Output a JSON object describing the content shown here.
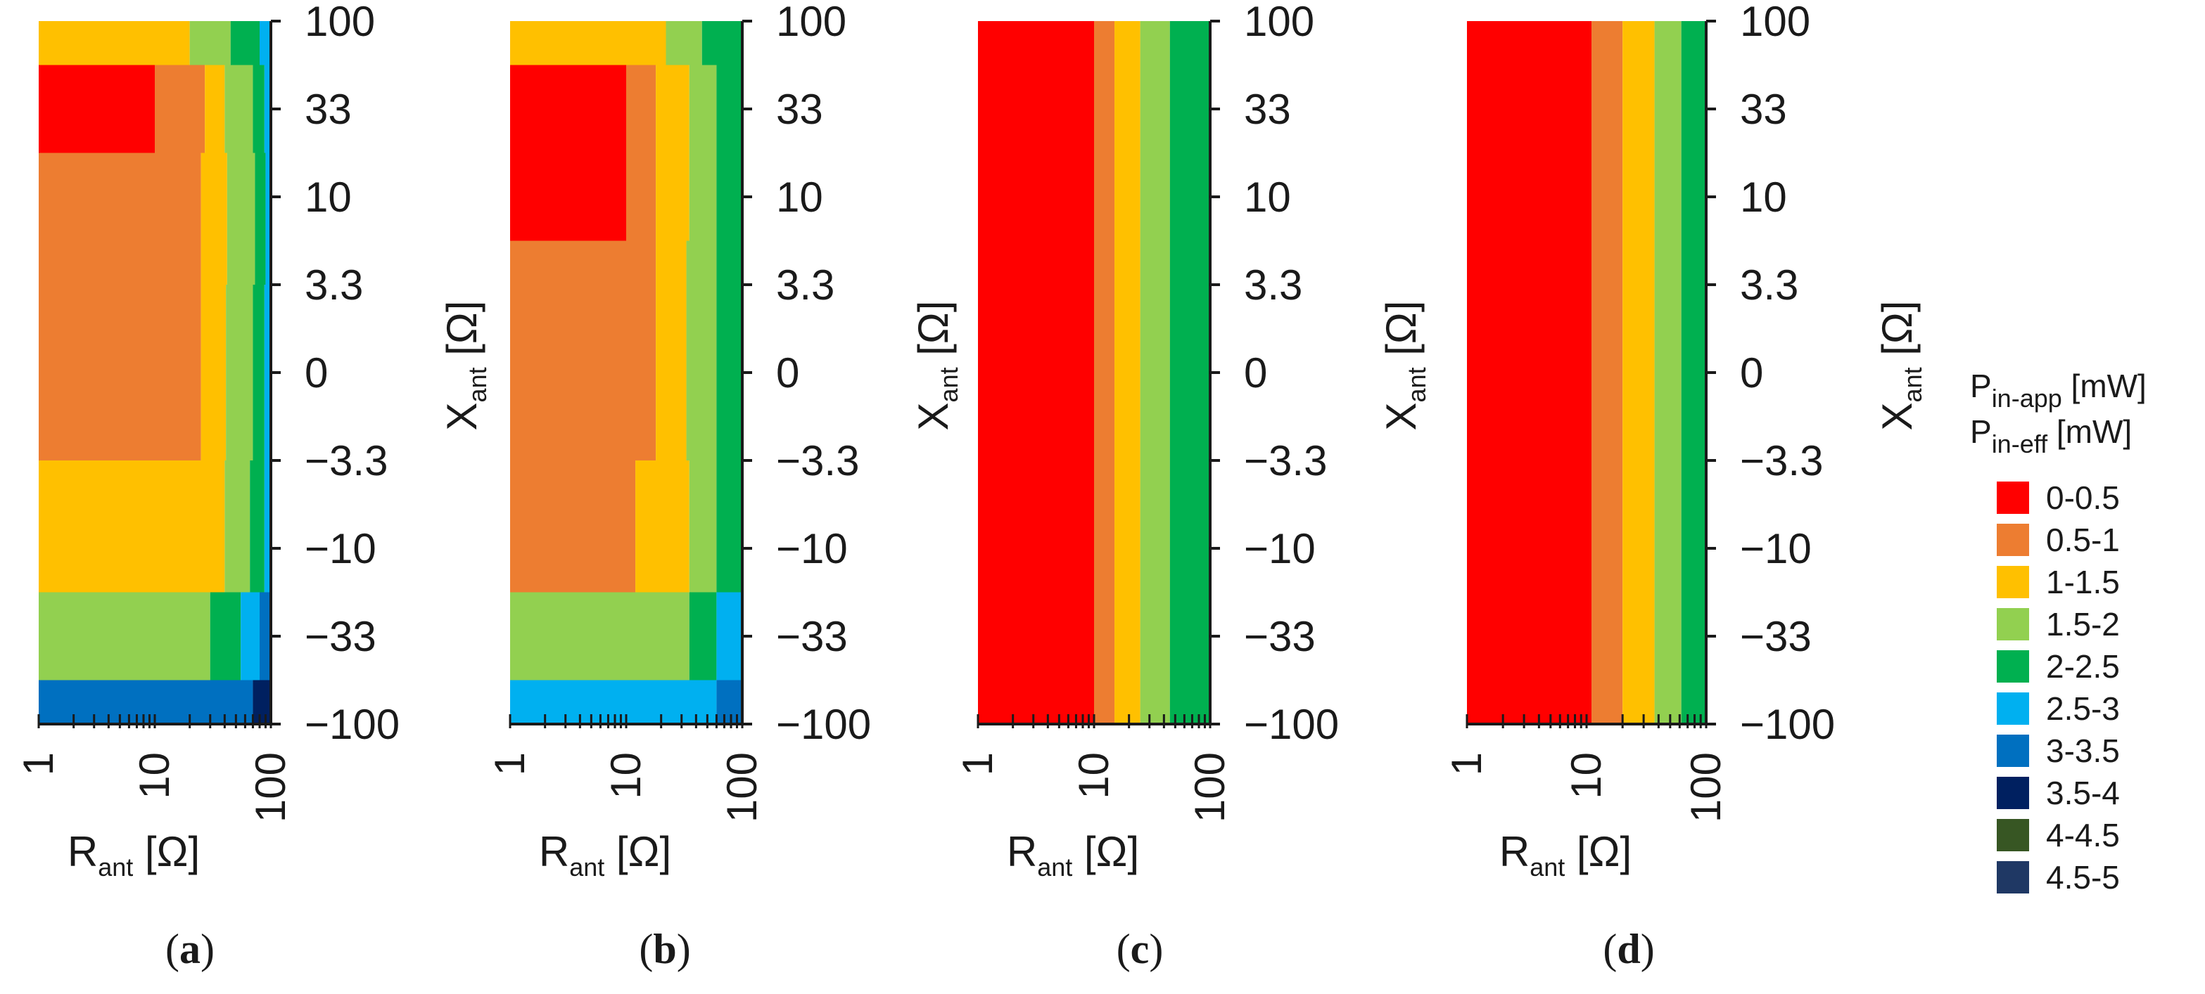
{
  "legend": {
    "title_line1": {
      "main": "P",
      "sub": "in-app",
      "unit": " [mW]"
    },
    "title_line2": {
      "main": "P",
      "sub": "in-eff",
      "unit": " [mW]"
    },
    "items": [
      {
        "label": "0-0.5",
        "color": "#ff0000"
      },
      {
        "label": "0.5-1",
        "color": "#ed7d31"
      },
      {
        "label": "1-1.5",
        "color": "#ffc000"
      },
      {
        "label": "1.5-2",
        "color": "#92d050"
      },
      {
        "label": "2-2.5",
        "color": "#00b050"
      },
      {
        "label": "2.5-3",
        "color": "#00b0f0"
      },
      {
        "label": "3-3.5",
        "color": "#0070c0"
      },
      {
        "label": "3.5-4",
        "color": "#002060"
      },
      {
        "label": "4-4.5",
        "color": "#375623"
      },
      {
        "label": "4.5-5",
        "color": "#1f3864"
      }
    ]
  },
  "chart_data": [
    {
      "type": "heatmap",
      "caption": "(a)",
      "xlabel": {
        "main": "R",
        "sub": "ant",
        "unit": " [Ω]"
      },
      "ylabel": {
        "main": "X",
        "sub": "ant",
        "unit": " [Ω]"
      },
      "x_scale": "log",
      "xlim": [
        1,
        100
      ],
      "x_ticks": [
        1,
        10,
        100
      ],
      "y_ticks": [
        100,
        33,
        10,
        3.3,
        0,
        -3.3,
        -10,
        -33,
        -100
      ],
      "y_tick_labels": [
        "100",
        "33",
        "10",
        "3.3",
        "0",
        "−3.3",
        "−10",
        "−33",
        "−100"
      ],
      "rows_per_level": [
        {
          "level": "100",
          "bands": [
            "1-1.5",
            "1.5-2",
            "2-2.5",
            "2.5-3"
          ],
          "boundaries": [
            1,
            20,
            45,
            80,
            100
          ]
        },
        {
          "level": "33",
          "bands": [
            "0-0.5",
            "0.5-1",
            "1-1.5",
            "1.5-2",
            "2-2.5",
            "2.5-3"
          ],
          "boundaries": [
            1,
            10,
            27,
            40,
            70,
            88,
            100
          ]
        },
        {
          "level": "10",
          "bands": [
            "0.5-1",
            "1-1.5",
            "1.5-2",
            "2-2.5",
            "2.5-3"
          ],
          "boundaries": [
            1,
            25,
            42,
            73,
            90,
            100
          ]
        },
        {
          "level": "0",
          "bands": [
            "0.5-1",
            "1-1.5",
            "1.5-2",
            "2-2.5",
            "2.5-3"
          ],
          "boundaries": [
            1,
            25,
            41,
            70,
            88,
            100
          ]
        },
        {
          "level": "-10",
          "bands": [
            "1-1.5",
            "1.5-2",
            "2-2.5",
            "2.5-3"
          ],
          "boundaries": [
            1,
            40,
            66,
            88,
            100
          ]
        },
        {
          "level": "-33",
          "bands": [
            "1.5-2",
            "2-2.5",
            "2.5-3",
            "3-3.5"
          ],
          "boundaries": [
            1,
            30,
            55,
            80,
            100
          ]
        },
        {
          "level": "-100",
          "bands": [
            "3-3.5",
            "3.5-4"
          ],
          "boundaries": [
            1,
            70,
            100
          ]
        }
      ]
    },
    {
      "type": "heatmap",
      "caption": "(b)",
      "xlabel": {
        "main": "R",
        "sub": "ant",
        "unit": " [Ω]"
      },
      "ylabel": {
        "main": "X",
        "sub": "ant",
        "unit": " [Ω]"
      },
      "x_scale": "log",
      "xlim": [
        1,
        100
      ],
      "x_ticks": [
        1,
        10,
        100
      ],
      "y_ticks": [
        100,
        33,
        10,
        3.3,
        0,
        -3.3,
        -10,
        -33,
        -100
      ],
      "y_tick_labels": [
        "100",
        "33",
        "10",
        "3.3",
        "0",
        "−3.3",
        "−10",
        "−33",
        "−100"
      ],
      "rows_per_level": [
        {
          "level": "100",
          "bands": [
            "1-1.5",
            "1.5-2",
            "2-2.5"
          ],
          "boundaries": [
            1,
            22,
            45,
            100
          ]
        },
        {
          "level": "33",
          "bands": [
            "0-0.5",
            "0.5-1",
            "1-1.5",
            "1.5-2",
            "2-2.5"
          ],
          "boundaries": [
            1,
            10,
            18,
            35,
            60,
            100
          ]
        },
        {
          "level": "0",
          "bands": [
            "0.5-1",
            "1-1.5",
            "1.5-2",
            "2-2.5"
          ],
          "boundaries": [
            1,
            18,
            33,
            60,
            100
          ]
        },
        {
          "level": "-10",
          "bands": [
            "0.5-1",
            "1-1.5",
            "1.5-2",
            "2-2.5"
          ],
          "boundaries": [
            1,
            12,
            35,
            60,
            100
          ]
        },
        {
          "level": "-33",
          "bands": [
            "1.5-2",
            "2-2.5",
            "2.5-3"
          ],
          "boundaries": [
            1,
            35,
            60,
            100
          ]
        },
        {
          "level": "-100",
          "bands": [
            "2.5-3",
            "3-3.5"
          ],
          "boundaries": [
            1,
            60,
            100
          ]
        }
      ]
    },
    {
      "type": "heatmap",
      "caption": "(c)",
      "xlabel": {
        "main": "R",
        "sub": "ant",
        "unit": " [Ω]"
      },
      "ylabel": {
        "main": "X",
        "sub": "ant",
        "unit": " [Ω]"
      },
      "x_scale": "log",
      "xlim": [
        1,
        100
      ],
      "x_ticks": [
        1,
        10,
        100
      ],
      "y_ticks": [
        100,
        33,
        10,
        3.3,
        0,
        -3.3,
        -10,
        -33,
        -100
      ],
      "y_tick_labels": [
        "100",
        "33",
        "10",
        "3.3",
        "0",
        "−3.3",
        "−10",
        "−33",
        "−100"
      ],
      "bands_all_rows": [
        "0-0.5",
        "0.5-1",
        "1-1.5",
        "1.5-2",
        "2-2.5"
      ],
      "boundaries": [
        1,
        10,
        15,
        25,
        45,
        100
      ]
    },
    {
      "type": "heatmap",
      "caption": "(d)",
      "xlabel": {
        "main": "R",
        "sub": "ant",
        "unit": " [Ω]"
      },
      "ylabel": {
        "main": "X",
        "sub": "ant",
        "unit": " [Ω]"
      },
      "x_scale": "log",
      "xlim": [
        1,
        100
      ],
      "x_ticks": [
        1,
        10,
        100
      ],
      "y_ticks": [
        100,
        33,
        10,
        3.3,
        0,
        -3.3,
        -10,
        -33,
        -100
      ],
      "y_tick_labels": [
        "100",
        "33",
        "10",
        "3.3",
        "0",
        "−3.3",
        "−10",
        "−33",
        "−100"
      ],
      "bands_all_rows": [
        "0-0.5",
        "0.5-1",
        "1-1.5",
        "1.5-2",
        "2-2.5"
      ],
      "boundaries": [
        1,
        11,
        20,
        37,
        62,
        100
      ]
    }
  ]
}
